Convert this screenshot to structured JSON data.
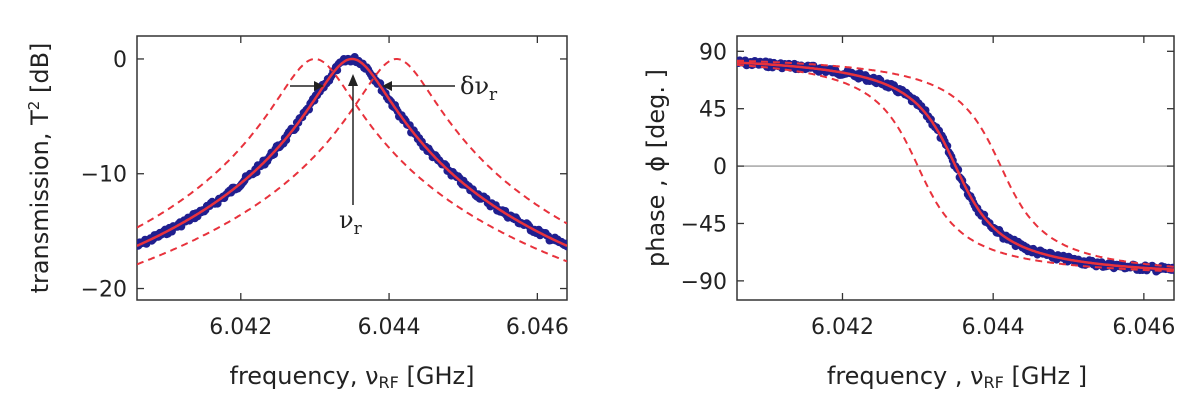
{
  "chart_data": [
    {
      "type": "line",
      "xlabel": "frequency, ν",
      "xlabel_sub": "RF",
      "xlabel_unit": " [GHz]",
      "ylabel": "transmission, T",
      "ylabel_sup": "2",
      "ylabel_unit": " [dB]",
      "xlim": [
        6.0406,
        6.0464
      ],
      "ylim": [
        -21,
        2
      ],
      "xticks": [
        6.042,
        6.044,
        6.046
      ],
      "xtick_labels": [
        "6.042",
        "6.044",
        "6.046"
      ],
      "yticks": [
        0,
        -10,
        -20
      ],
      "ytick_labels": [
        "0",
        "−10",
        "−20"
      ],
      "grid": false,
      "resonance": {
        "f0": 6.0435,
        "width": 0.00045,
        "peak_db": 0,
        "floor_db": -20.5
      },
      "annotations": {
        "width_label": "δν",
        "width_label_sub": "r",
        "center_label": "ν",
        "center_label_sub": "r"
      },
      "series": [
        {
          "role": "measured",
          "color": "#1f1f8f",
          "f0": 6.0435
        },
        {
          "role": "fit",
          "color": "#e8323c",
          "f0": 6.0435
        },
        {
          "role": "shifted-low",
          "color": "#e8323c",
          "dashed": true,
          "f0": 6.043
        },
        {
          "role": "shifted-high",
          "color": "#e8323c",
          "dashed": true,
          "f0": 6.0441
        }
      ]
    },
    {
      "type": "line",
      "xlabel": "frequency , ν",
      "xlabel_sub": "RF",
      "xlabel_unit": "  [GHz ]",
      "ylabel": "phase , ϕ",
      "ylabel_unit": "  [deg. ]",
      "xlim": [
        6.0406,
        6.0464
      ],
      "ylim": [
        -105,
        102
      ],
      "xticks": [
        6.042,
        6.044,
        6.046
      ],
      "xtick_labels": [
        "6.042",
        "6.044",
        "6.046"
      ],
      "yticks": [
        90,
        45,
        0,
        -45,
        -90
      ],
      "ytick_labels": [
        "90",
        "45",
        "0",
        "−45",
        "−90"
      ],
      "grid": false,
      "zero_line": true,
      "phase_model": {
        "f0": 6.0435,
        "width": 0.00045,
        "max_deg": 90
      },
      "series": [
        {
          "role": "measured",
          "color": "#1f1f8f",
          "f0": 6.0435
        },
        {
          "role": "fit",
          "color": "#e8323c",
          "f0": 6.0435
        },
        {
          "role": "shifted-low",
          "color": "#e8323c",
          "dashed": true,
          "f0": 6.043
        },
        {
          "role": "shifted-high",
          "color": "#e8323c",
          "dashed": true,
          "f0": 6.0441
        }
      ]
    }
  ]
}
